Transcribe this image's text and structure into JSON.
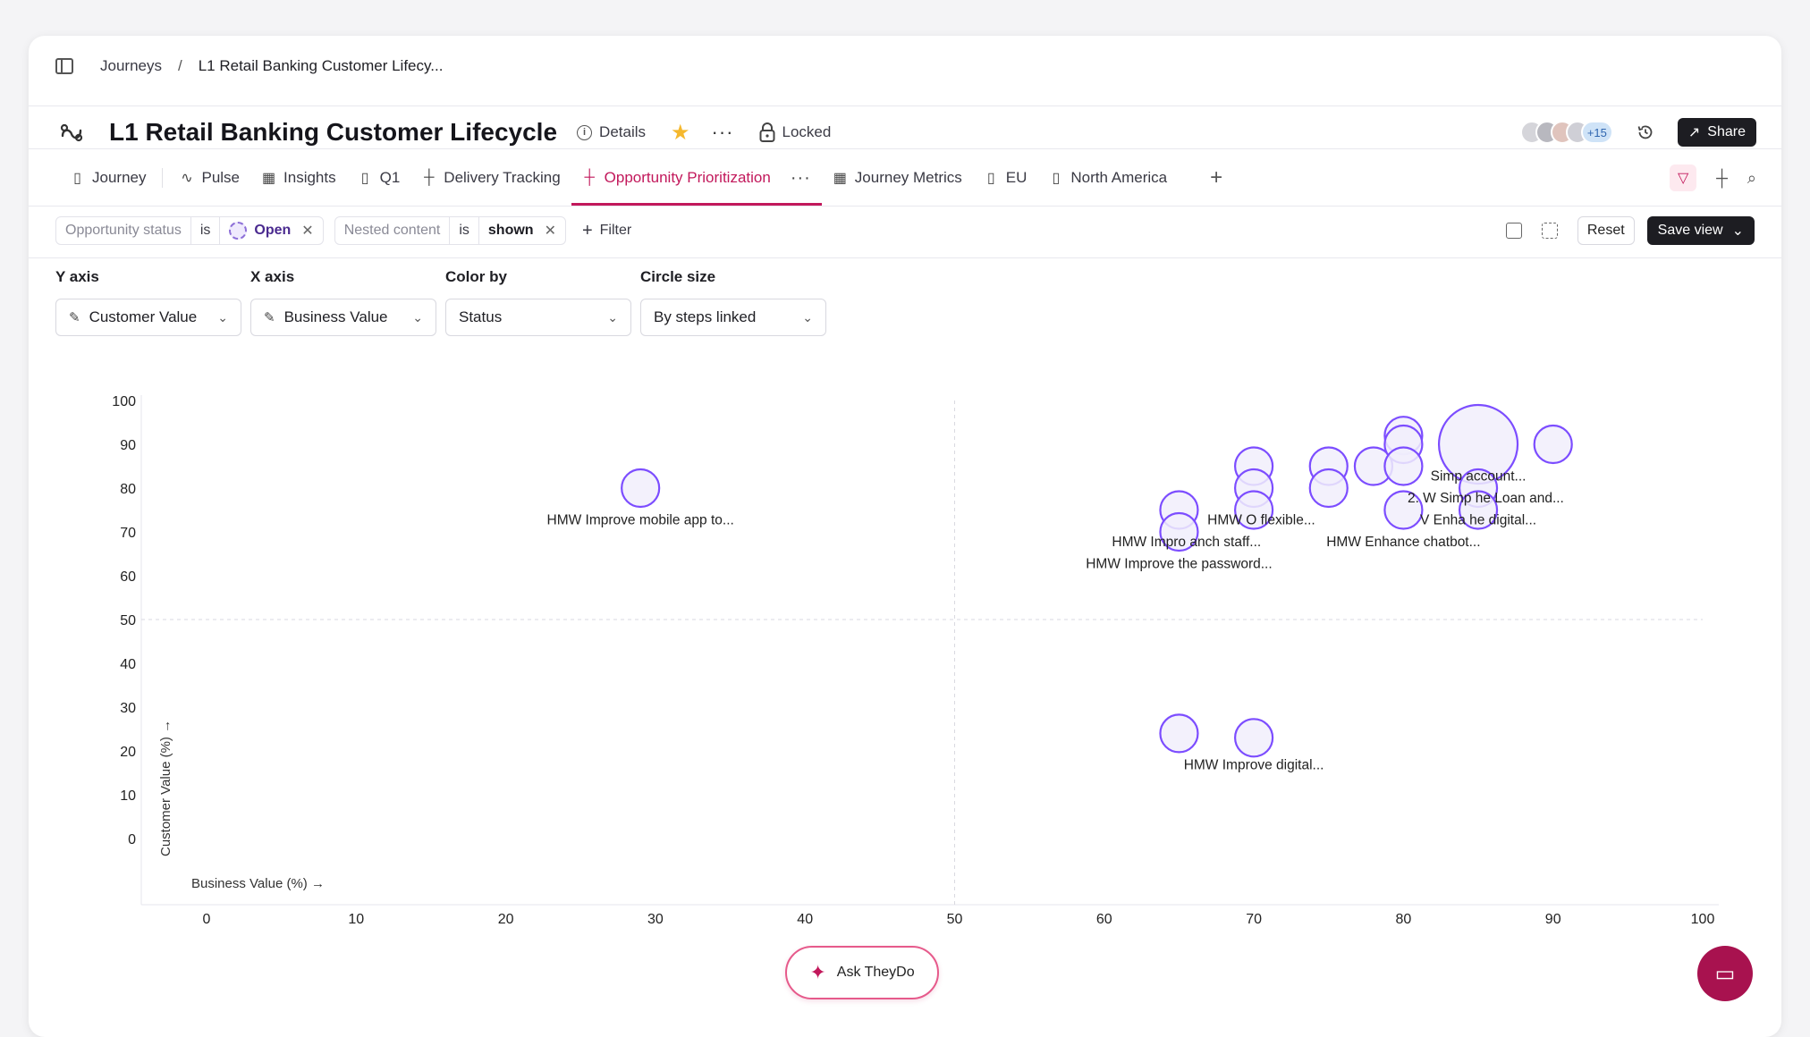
{
  "breadcrumb": {
    "root": "Journeys",
    "separator": "/",
    "current": "L1 Retail Banking Customer Lifecy..."
  },
  "header": {
    "title": "L1 Retail Banking Customer Lifecycle",
    "details_label": "Details",
    "locked_label": "Locked",
    "avatar_count": "+15",
    "share_label": "Share"
  },
  "tabs": [
    {
      "label": "Journey",
      "icon": "map-icon"
    },
    {
      "label": "Pulse",
      "icon": "pulse-icon"
    },
    {
      "label": "Insights",
      "icon": "table-icon"
    },
    {
      "label": "Q1",
      "icon": "map-icon"
    },
    {
      "label": "Delivery Tracking",
      "icon": "grid-icon"
    },
    {
      "label": "Opportunity Prioritization",
      "icon": "grid-icon",
      "active": true
    },
    {
      "label": "Journey Metrics",
      "icon": "table-icon"
    },
    {
      "label": "EU",
      "icon": "map-icon"
    },
    {
      "label": "North America",
      "icon": "map-icon"
    }
  ],
  "filters": [
    {
      "field": "Opportunity status",
      "op": "is",
      "value": "Open"
    },
    {
      "field": "Nested content",
      "op": "is",
      "value": "shown"
    }
  ],
  "filter_add_label": "Filter",
  "reset_label": "Reset",
  "save_view_label": "Save view",
  "selectors": {
    "y": {
      "label": "Y axis",
      "value": "Customer Value"
    },
    "x": {
      "label": "X axis",
      "value": "Business Value"
    },
    "color": {
      "label": "Color by",
      "value": "Status"
    },
    "size": {
      "label": "Circle size",
      "value": "By steps linked"
    }
  },
  "ask_label": "Ask TheyDo",
  "colors": {
    "accent": "#c2185b",
    "bubble_stroke": "#7c4dff",
    "bubble_fill": "#f1eefc"
  },
  "chart_data": {
    "type": "scatter",
    "xlabel": "Business Value (%)",
    "ylabel": "Customer Value (%)",
    "xlim": [
      0,
      100
    ],
    "ylim": [
      0,
      100
    ],
    "x_ticks": [
      0,
      10,
      20,
      30,
      40,
      50,
      60,
      70,
      80,
      90,
      100
    ],
    "y_ticks": [
      0,
      10,
      20,
      30,
      40,
      50,
      60,
      70,
      80,
      90,
      100
    ],
    "quadrant_lines": {
      "x": 50,
      "y": 50
    },
    "points": [
      {
        "x": 29,
        "y": 80,
        "size": 1
      },
      {
        "x": 65,
        "y": 75,
        "size": 1
      },
      {
        "x": 65,
        "y": 70,
        "size": 1
      },
      {
        "x": 70,
        "y": 85,
        "size": 1
      },
      {
        "x": 70,
        "y": 80,
        "size": 1
      },
      {
        "x": 70,
        "y": 75,
        "size": 1
      },
      {
        "x": 75,
        "y": 85,
        "size": 1
      },
      {
        "x": 75,
        "y": 80,
        "size": 1
      },
      {
        "x": 78,
        "y": 85,
        "size": 1
      },
      {
        "x": 80,
        "y": 92,
        "size": 1
      },
      {
        "x": 80,
        "y": 90,
        "size": 1
      },
      {
        "x": 80,
        "y": 85,
        "size": 1
      },
      {
        "x": 80,
        "y": 75,
        "size": 1
      },
      {
        "x": 85,
        "y": 90,
        "size": 3
      },
      {
        "x": 85,
        "y": 80,
        "size": 1
      },
      {
        "x": 85,
        "y": 75,
        "size": 1
      },
      {
        "x": 90,
        "y": 90,
        "size": 1
      },
      {
        "x": 65,
        "y": 24,
        "size": 1
      },
      {
        "x": 70,
        "y": 23,
        "size": 1
      }
    ],
    "annotations": [
      {
        "text": "HMW Improve mobile app to...",
        "x": 29,
        "y": 73
      },
      {
        "text": "HMW O   flexible...",
        "x": 70.5,
        "y": 73
      },
      {
        "text": "HMW Impro   anch staff...",
        "x": 65.5,
        "y": 68
      },
      {
        "text": "HMW Improve the password...",
        "x": 65,
        "y": 63
      },
      {
        "text": "Simp     account...",
        "x": 85,
        "y": 83
      },
      {
        "text": "2.     W Simp    he Loan and...",
        "x": 85.5,
        "y": 78
      },
      {
        "text": "V Enha    he digital...",
        "x": 85,
        "y": 73
      },
      {
        "text": "HMW Enhance chatbot...",
        "x": 80,
        "y": 68
      },
      {
        "text": "HMW Improve digital...",
        "x": 70,
        "y": 17
      }
    ]
  }
}
